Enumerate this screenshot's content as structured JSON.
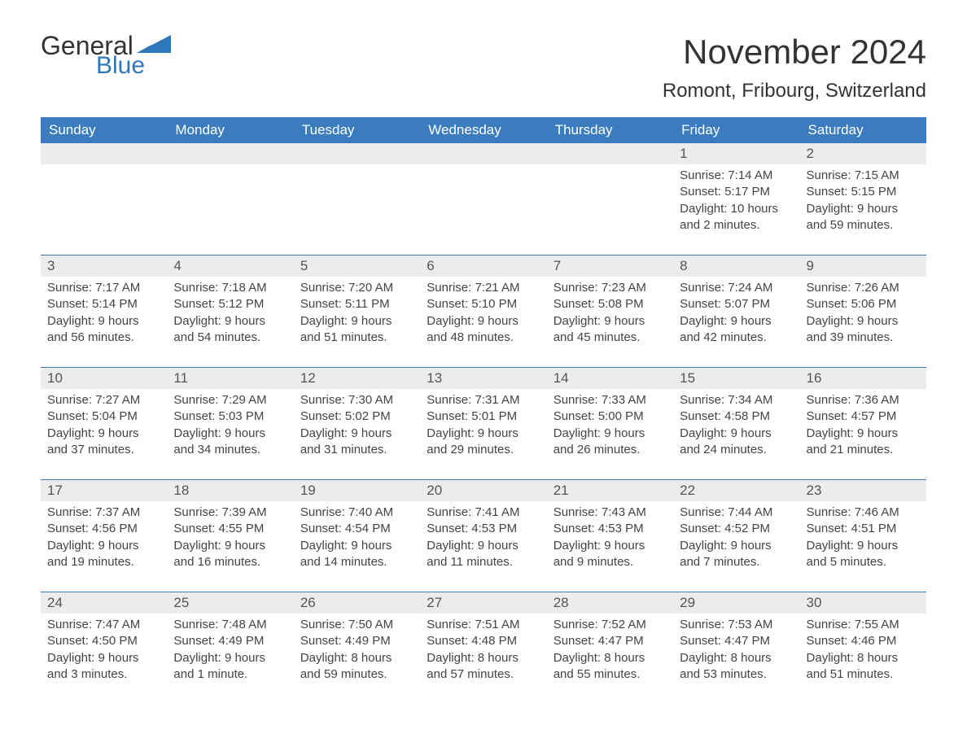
{
  "logo": {
    "text1": "General",
    "text2": "Blue",
    "tri_color": "#2f77bb"
  },
  "title": "November 2024",
  "location": "Romont, Fribourg, Switzerland",
  "colors": {
    "header_bg": "#3a7cbd",
    "header_text": "#ffffff",
    "daynum_bg": "#ececec",
    "sep_line": "#3a7cbd",
    "body_text": "#444444",
    "title_text": "#333333",
    "logo_blue": "#2f77bb",
    "page_bg": "#ffffff"
  },
  "typography": {
    "month_title_fontsize": 42,
    "location_fontsize": 24,
    "weekday_fontsize": 17,
    "daynum_fontsize": 17,
    "detail_fontsize": 15,
    "font_family": "Arial"
  },
  "layout": {
    "columns": 7,
    "week_start": "Sunday"
  },
  "weekdays": [
    "Sunday",
    "Monday",
    "Tuesday",
    "Wednesday",
    "Thursday",
    "Friday",
    "Saturday"
  ],
  "labels": {
    "sunrise": "Sunrise",
    "sunset": "Sunset",
    "daylight": "Daylight"
  },
  "weeks": [
    [
      null,
      null,
      null,
      null,
      null,
      {
        "n": "1",
        "sunrise": "7:14 AM",
        "sunset": "5:17 PM",
        "daylight": "10 hours and 2 minutes."
      },
      {
        "n": "2",
        "sunrise": "7:15 AM",
        "sunset": "5:15 PM",
        "daylight": "9 hours and 59 minutes."
      }
    ],
    [
      {
        "n": "3",
        "sunrise": "7:17 AM",
        "sunset": "5:14 PM",
        "daylight": "9 hours and 56 minutes."
      },
      {
        "n": "4",
        "sunrise": "7:18 AM",
        "sunset": "5:12 PM",
        "daylight": "9 hours and 54 minutes."
      },
      {
        "n": "5",
        "sunrise": "7:20 AM",
        "sunset": "5:11 PM",
        "daylight": "9 hours and 51 minutes."
      },
      {
        "n": "6",
        "sunrise": "7:21 AM",
        "sunset": "5:10 PM",
        "daylight": "9 hours and 48 minutes."
      },
      {
        "n": "7",
        "sunrise": "7:23 AM",
        "sunset": "5:08 PM",
        "daylight": "9 hours and 45 minutes."
      },
      {
        "n": "8",
        "sunrise": "7:24 AM",
        "sunset": "5:07 PM",
        "daylight": "9 hours and 42 minutes."
      },
      {
        "n": "9",
        "sunrise": "7:26 AM",
        "sunset": "5:06 PM",
        "daylight": "9 hours and 39 minutes."
      }
    ],
    [
      {
        "n": "10",
        "sunrise": "7:27 AM",
        "sunset": "5:04 PM",
        "daylight": "9 hours and 37 minutes."
      },
      {
        "n": "11",
        "sunrise": "7:29 AM",
        "sunset": "5:03 PM",
        "daylight": "9 hours and 34 minutes."
      },
      {
        "n": "12",
        "sunrise": "7:30 AM",
        "sunset": "5:02 PM",
        "daylight": "9 hours and 31 minutes."
      },
      {
        "n": "13",
        "sunrise": "7:31 AM",
        "sunset": "5:01 PM",
        "daylight": "9 hours and 29 minutes."
      },
      {
        "n": "14",
        "sunrise": "7:33 AM",
        "sunset": "5:00 PM",
        "daylight": "9 hours and 26 minutes."
      },
      {
        "n": "15",
        "sunrise": "7:34 AM",
        "sunset": "4:58 PM",
        "daylight": "9 hours and 24 minutes."
      },
      {
        "n": "16",
        "sunrise": "7:36 AM",
        "sunset": "4:57 PM",
        "daylight": "9 hours and 21 minutes."
      }
    ],
    [
      {
        "n": "17",
        "sunrise": "7:37 AM",
        "sunset": "4:56 PM",
        "daylight": "9 hours and 19 minutes."
      },
      {
        "n": "18",
        "sunrise": "7:39 AM",
        "sunset": "4:55 PM",
        "daylight": "9 hours and 16 minutes."
      },
      {
        "n": "19",
        "sunrise": "7:40 AM",
        "sunset": "4:54 PM",
        "daylight": "9 hours and 14 minutes."
      },
      {
        "n": "20",
        "sunrise": "7:41 AM",
        "sunset": "4:53 PM",
        "daylight": "9 hours and 11 minutes."
      },
      {
        "n": "21",
        "sunrise": "7:43 AM",
        "sunset": "4:53 PM",
        "daylight": "9 hours and 9 minutes."
      },
      {
        "n": "22",
        "sunrise": "7:44 AM",
        "sunset": "4:52 PM",
        "daylight": "9 hours and 7 minutes."
      },
      {
        "n": "23",
        "sunrise": "7:46 AM",
        "sunset": "4:51 PM",
        "daylight": "9 hours and 5 minutes."
      }
    ],
    [
      {
        "n": "24",
        "sunrise": "7:47 AM",
        "sunset": "4:50 PM",
        "daylight": "9 hours and 3 minutes."
      },
      {
        "n": "25",
        "sunrise": "7:48 AM",
        "sunset": "4:49 PM",
        "daylight": "9 hours and 1 minute."
      },
      {
        "n": "26",
        "sunrise": "7:50 AM",
        "sunset": "4:49 PM",
        "daylight": "8 hours and 59 minutes."
      },
      {
        "n": "27",
        "sunrise": "7:51 AM",
        "sunset": "4:48 PM",
        "daylight": "8 hours and 57 minutes."
      },
      {
        "n": "28",
        "sunrise": "7:52 AM",
        "sunset": "4:47 PM",
        "daylight": "8 hours and 55 minutes."
      },
      {
        "n": "29",
        "sunrise": "7:53 AM",
        "sunset": "4:47 PM",
        "daylight": "8 hours and 53 minutes."
      },
      {
        "n": "30",
        "sunrise": "7:55 AM",
        "sunset": "4:46 PM",
        "daylight": "8 hours and 51 minutes."
      }
    ]
  ]
}
